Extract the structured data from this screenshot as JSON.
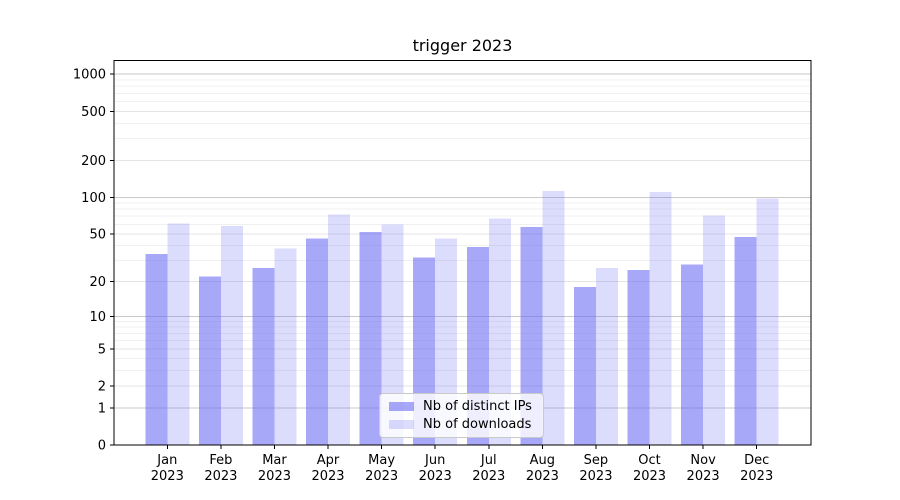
{
  "title": "trigger 2023",
  "chart_data": {
    "type": "bar",
    "title": "trigger 2023",
    "xlabel": "",
    "ylabel": "",
    "yscale": "symlog",
    "ylim": [
      0,
      1290
    ],
    "grid": true,
    "legend_position": "lower center",
    "categories": [
      "Jan 2023",
      "Feb 2023",
      "Mar 2023",
      "Apr 2023",
      "May 2023",
      "Jun 2023",
      "Jul 2023",
      "Aug 2023",
      "Sep 2023",
      "Oct 2023",
      "Nov 2023",
      "Dec 2023"
    ],
    "series": [
      {
        "name": "Nb of distinct IPs",
        "color": "#6e6ef3",
        "alpha": 0.6,
        "fill": "rgba(110,110,243,0.6)",
        "values": [
          34,
          22,
          26,
          46,
          52,
          32,
          39,
          57,
          18,
          25,
          28,
          47
        ]
      },
      {
        "name": "Nb of downloads",
        "color": "#6e6ef3",
        "alpha": 0.24,
        "fill": "rgba(110,110,243,0.24)",
        "values": [
          61,
          58,
          38,
          72,
          60,
          46,
          67,
          112,
          26,
          110,
          71,
          98
        ]
      }
    ],
    "y_ticks": [
      0,
      1,
      2,
      5,
      10,
      20,
      50,
      100,
      200,
      500,
      1000
    ],
    "y_minor_ticks": [
      3,
      4,
      6,
      7,
      8,
      9,
      30,
      40,
      60,
      70,
      80,
      90,
      300,
      400,
      600,
      700,
      800,
      900
    ],
    "grid_colors": {
      "major_decade": "#c9c9c9",
      "labeled": "#e4e4e4",
      "minor": "#f0f0f0"
    },
    "axis_color": "#000000"
  },
  "legend": {
    "items": [
      {
        "label": "Nb of distinct IPs"
      },
      {
        "label": "Nb of downloads"
      }
    ]
  }
}
